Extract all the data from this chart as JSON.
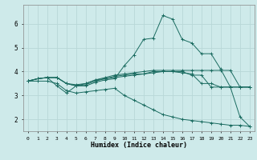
{
  "xlabel": "Humidex (Indice chaleur)",
  "xlim": [
    -0.5,
    23.5
  ],
  "ylim": [
    1.5,
    6.8
  ],
  "yticks": [
    2,
    3,
    4,
    5,
    6
  ],
  "xticks": [
    0,
    1,
    2,
    3,
    4,
    5,
    6,
    7,
    8,
    9,
    10,
    11,
    12,
    13,
    14,
    15,
    16,
    17,
    18,
    19,
    20,
    21,
    22,
    23
  ],
  "bg_color": "#ceeaea",
  "grid_color": "#b8d8d8",
  "line_color": "#1a6b60",
  "lines": [
    {
      "x": [
        0,
        1,
        2,
        3,
        4,
        5,
        6,
        7,
        8,
        9,
        10,
        11,
        12,
        13,
        14,
        15,
        16,
        17,
        18,
        19,
        20,
        21,
        22,
        23
      ],
      "y": [
        3.6,
        3.7,
        3.75,
        3.75,
        3.5,
        3.4,
        3.5,
        3.65,
        3.75,
        3.85,
        3.9,
        3.95,
        4.0,
        4.05,
        4.05,
        4.05,
        4.05,
        4.05,
        4.05,
        4.05,
        4.05,
        4.05,
        3.35,
        3.35
      ]
    },
    {
      "x": [
        0,
        1,
        2,
        3,
        4,
        5,
        6,
        7,
        8,
        9,
        10,
        11,
        12,
        13,
        14,
        15,
        16,
        17,
        18,
        19,
        20,
        21,
        22,
        23
      ],
      "y": [
        3.6,
        3.7,
        3.75,
        3.4,
        3.1,
        3.4,
        3.4,
        3.55,
        3.65,
        3.7,
        4.25,
        4.7,
        5.35,
        5.4,
        6.35,
        6.2,
        5.35,
        5.2,
        4.75,
        4.75,
        4.1,
        3.35,
        2.1,
        1.7
      ]
    },
    {
      "x": [
        0,
        1,
        2,
        3,
        4,
        5,
        6,
        7,
        8,
        9,
        10,
        11,
        12,
        13,
        14,
        15,
        16,
        17,
        18,
        19,
        20,
        21,
        22,
        23
      ],
      "y": [
        3.6,
        3.7,
        3.75,
        3.75,
        3.5,
        3.45,
        3.5,
        3.65,
        3.7,
        3.8,
        3.85,
        3.9,
        3.9,
        3.95,
        4.0,
        4.0,
        4.0,
        3.85,
        3.85,
        3.35,
        3.35,
        3.35,
        3.35,
        3.35
      ]
    },
    {
      "x": [
        0,
        1,
        2,
        3,
        4,
        5,
        6,
        7,
        8,
        9,
        10,
        11,
        12,
        13,
        14,
        15,
        16,
        17,
        18,
        19,
        20,
        21,
        22,
        23
      ],
      "y": [
        3.6,
        3.7,
        3.75,
        3.75,
        3.5,
        3.4,
        3.45,
        3.6,
        3.7,
        3.75,
        3.8,
        3.85,
        3.9,
        4.0,
        4.0,
        4.0,
        3.95,
        3.9,
        3.5,
        3.5,
        3.35,
        3.35,
        3.35,
        3.35
      ]
    },
    {
      "x": [
        0,
        1,
        2,
        3,
        4,
        5,
        6,
        7,
        8,
        9,
        10,
        11,
        12,
        13,
        14,
        15,
        16,
        17,
        18,
        19,
        20,
        21,
        22,
        23
      ],
      "y": [
        3.6,
        3.6,
        3.6,
        3.5,
        3.2,
        3.1,
        3.15,
        3.2,
        3.25,
        3.3,
        3.0,
        2.8,
        2.6,
        2.4,
        2.2,
        2.1,
        2.0,
        1.95,
        1.9,
        1.85,
        1.8,
        1.75,
        1.75,
        1.7
      ]
    }
  ]
}
